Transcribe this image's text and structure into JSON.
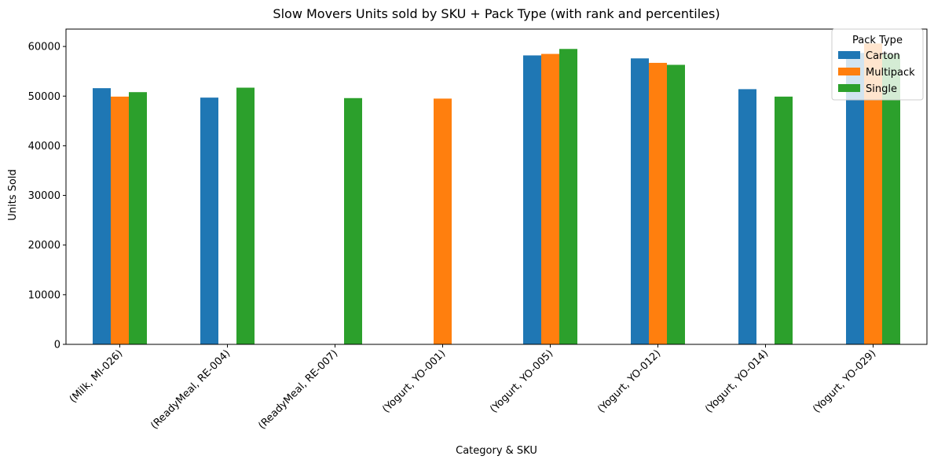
{
  "chart_data": {
    "type": "bar",
    "title": "Slow Movers Units sold by SKU + Pack Type (with rank and percentiles)",
    "xlabel": "Category & SKU",
    "ylabel": "Units Sold",
    "ylim": [
      0,
      63500
    ],
    "yticks": [
      0,
      10000,
      20000,
      30000,
      40000,
      50000,
      60000
    ],
    "grid": false,
    "legend": {
      "title": "Pack Type",
      "placement": "top-right"
    },
    "categories": [
      "(Milk, MI-026)",
      "(ReadyMeal, RE-004)",
      "(ReadyMeal, RE-007)",
      "(Yogurt, YO-001)",
      "(Yogurt, YO-005)",
      "(Yogurt, YO-012)",
      "(Yogurt, YO-014)",
      "(Yogurt, YO-029)"
    ],
    "series": [
      {
        "name": "Carton",
        "color": "#1f77b4",
        "values": [
          51600,
          49700,
          null,
          null,
          58200,
          57600,
          51400,
          58700
        ]
      },
      {
        "name": "Multipack",
        "color": "#ff7f0e",
        "values": [
          49900,
          null,
          null,
          49500,
          58500,
          56700,
          null,
          60600
        ]
      },
      {
        "name": "Single",
        "color": "#2ca02c",
        "values": [
          50800,
          51700,
          49600,
          null,
          59500,
          56300,
          49900,
          58400
        ]
      }
    ]
  }
}
